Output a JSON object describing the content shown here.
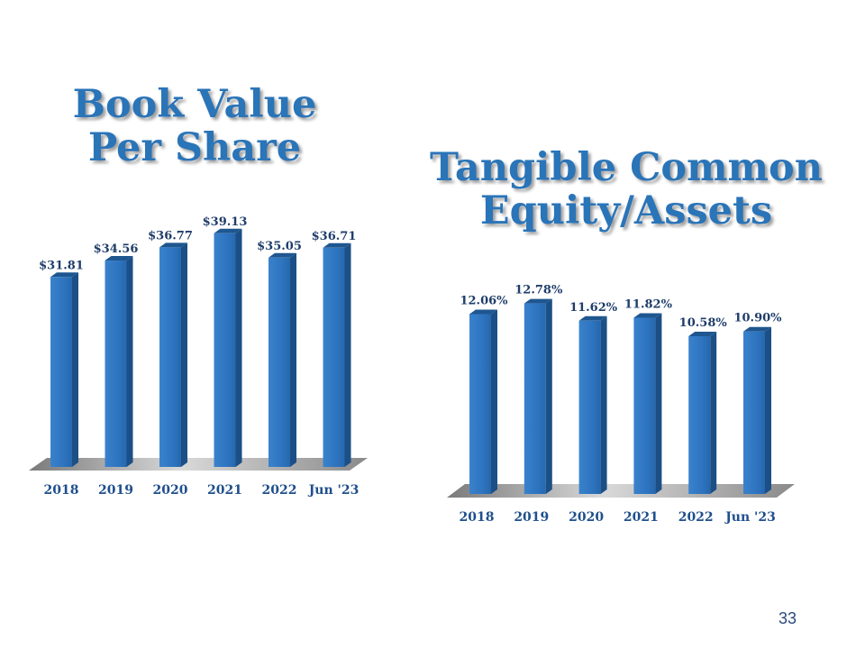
{
  "charts": {
    "book_value": {
      "title_line1": "Book Value",
      "title_line2": "Per Share"
    },
    "tce": {
      "title_line1": "Tangible Common",
      "title_line2": "Equity/Assets"
    }
  },
  "page_number": "33",
  "colors": {
    "title": "#2a74b8",
    "bar_front": "#2e74c0",
    "bar_side": "#1c4f86",
    "bar_top": "#1e568f",
    "floor": "#9a9a9a",
    "label": "#1f3d6a"
  },
  "chart_data": [
    {
      "type": "bar",
      "title": "Book Value Per Share",
      "categories": [
        "2018",
        "2019",
        "2020",
        "2021",
        "2022",
        "Jun '23"
      ],
      "values": [
        31.81,
        34.56,
        36.77,
        39.13,
        35.05,
        36.71
      ],
      "value_labels": [
        "$31.81",
        "$34.56",
        "$36.77",
        "$39.13",
        "$35.05",
        "$36.71"
      ],
      "ylim": [
        0,
        40
      ],
      "grid": false,
      "legend": "none",
      "style": "3d-bar"
    },
    {
      "type": "bar",
      "title": "Tangible Common Equity/Assets",
      "categories": [
        "2018",
        "2019",
        "2020",
        "2021",
        "2022",
        "Jun '23"
      ],
      "values": [
        12.06,
        12.78,
        11.62,
        11.82,
        10.58,
        10.9
      ],
      "value_labels": [
        "12.06%",
        "12.78%",
        "11.62%",
        "11.82%",
        "10.58%",
        "10.90%"
      ],
      "ylim": [
        0,
        13.3
      ],
      "grid": false,
      "legend": "none",
      "style": "3d-bar"
    }
  ]
}
